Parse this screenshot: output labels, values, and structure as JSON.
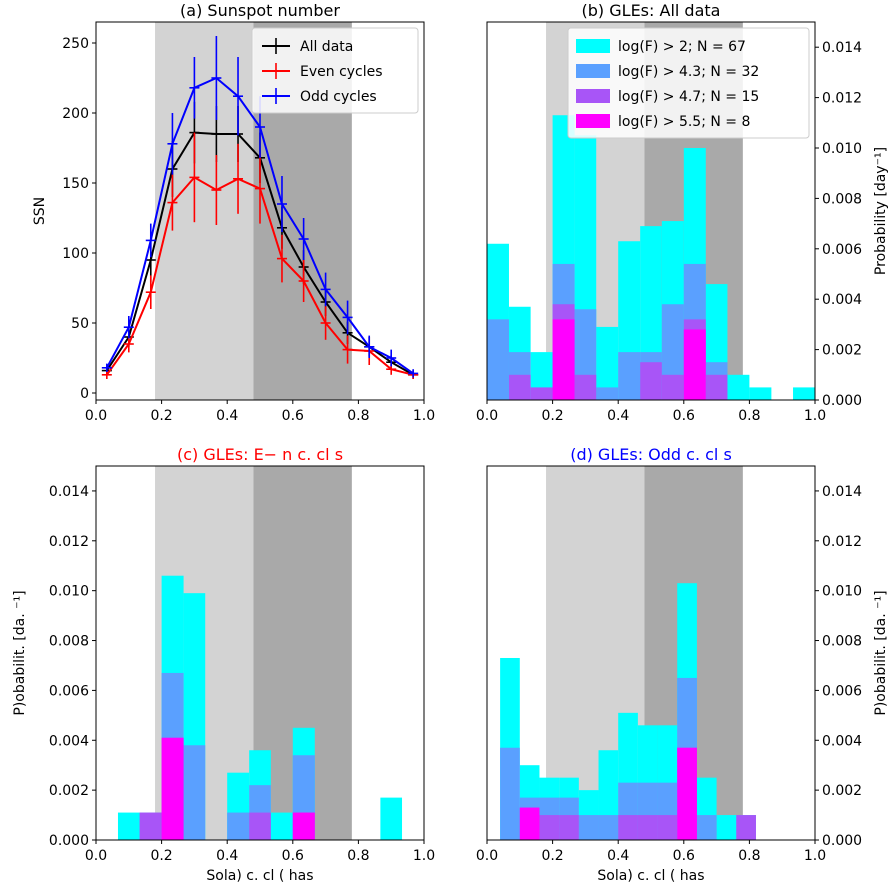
{
  "colors": {
    "all_data": "#000000",
    "even_cycles": "#ff0000",
    "odd_cycles": "#0000ff",
    "logF_2": "#00ffff",
    "logF_4_3": "#5aa0ff",
    "logF_4_7": "#a855f7",
    "logF_5_5": "#ff00ff",
    "rising_phase_band": "#d3d3d3",
    "declining_phase_band": "#a9a9a9"
  },
  "chart_data": [
    {
      "id": "a",
      "type": "line",
      "title": "(a) Sunspot number",
      "title_color": "#000000",
      "xlabel": "",
      "ylabel": "SSN",
      "xlim": [
        0.0,
        1.0
      ],
      "ylim": [
        -5,
        265
      ],
      "xticks": [
        "0.0",
        "0.2",
        "0.4",
        "0.6",
        "0.8",
        "1.0"
      ],
      "xtick_values": [
        0.0,
        0.2,
        0.4,
        0.6,
        0.8,
        1.0
      ],
      "yticks": [
        "0",
        "50",
        "100",
        "150",
        "200",
        "250"
      ],
      "ytick_values": [
        0,
        50,
        100,
        150,
        200,
        250
      ],
      "ytick_side": "left",
      "bands": [
        {
          "x0": 0.18,
          "x1": 0.48,
          "shade": "light"
        },
        {
          "x0": 0.48,
          "x1": 0.78,
          "shade": "dark"
        }
      ],
      "legend_position": "top-right",
      "x": [
        0.033,
        0.1,
        0.167,
        0.233,
        0.3,
        0.367,
        0.433,
        0.5,
        0.567,
        0.633,
        0.7,
        0.767,
        0.833,
        0.9,
        0.967
      ],
      "series": [
        {
          "name": "All data",
          "color_key": "all_data",
          "values": [
            16,
            40,
            95,
            160,
            186,
            185,
            185,
            168,
            118,
            90,
            65,
            43,
            33,
            22,
            13
          ],
          "errors": [
            3,
            7,
            16,
            20,
            22,
            20,
            20,
            18,
            15,
            12,
            10,
            8,
            7,
            5,
            3
          ]
        },
        {
          "name": "Even cycles",
          "color_key": "even_cycles",
          "values": [
            13,
            35,
            72,
            136,
            154,
            145,
            153,
            146,
            96,
            80,
            50,
            31,
            30,
            17,
            13
          ],
          "errors": [
            3,
            6,
            12,
            20,
            32,
            25,
            25,
            25,
            17,
            15,
            12,
            10,
            10,
            4,
            3
          ]
        },
        {
          "name": "Odd cycles",
          "color_key": "odd_cycles",
          "values": [
            18,
            47,
            109,
            178,
            218,
            225,
            212,
            190,
            135,
            110,
            74,
            54,
            33,
            25,
            14
          ],
          "errors": [
            3,
            8,
            12,
            22,
            22,
            30,
            28,
            22,
            20,
            15,
            12,
            12,
            8,
            6,
            3
          ]
        }
      ]
    },
    {
      "id": "b",
      "type": "bar",
      "title": "(b) GLEs: All data",
      "title_color": "#000000",
      "xlabel": "",
      "ylabel": "Probability [day⁻¹]",
      "xlim": [
        0.0,
        1.0
      ],
      "ylim": [
        0.0,
        0.015
      ],
      "xticks": [
        "0.0",
        "0.2",
        "0.4",
        "0.6",
        "0.8",
        "1.0"
      ],
      "xtick_values": [
        0.0,
        0.2,
        0.4,
        0.6,
        0.8,
        1.0
      ],
      "yticks": [
        "0.000",
        "0.002",
        "0.004",
        "0.006",
        "0.008",
        "0.010",
        "0.012",
        "0.014"
      ],
      "ytick_values": [
        0.0,
        0.002,
        0.004,
        0.006,
        0.008,
        0.01,
        0.012,
        0.014
      ],
      "ytick_side": "right",
      "bands": [
        {
          "x0": 0.18,
          "x1": 0.48,
          "shade": "light"
        },
        {
          "x0": 0.48,
          "x1": 0.78,
          "shade": "dark"
        }
      ],
      "legend_position": "top-right",
      "bin_edges": [
        0.0,
        0.067,
        0.133,
        0.2,
        0.267,
        0.333,
        0.4,
        0.467,
        0.533,
        0.6,
        0.667,
        0.733,
        0.8,
        0.867,
        0.933,
        1.0
      ],
      "series": [
        {
          "name": "log(F) > 2; N = 67",
          "color_key": "logF_2",
          "values": [
            0.0062,
            0.0037,
            0.0019,
            0.0113,
            0.0105,
            0.0029,
            0.0063,
            0.0069,
            0.0071,
            0.01,
            0.0046,
            0.001,
            0.0005,
            0,
            0.0005
          ]
        },
        {
          "name": "log(F) > 4.3; N = 32",
          "color_key": "logF_4_3",
          "values": [
            0.0032,
            0.0019,
            0,
            0.0054,
            0.0036,
            0.0005,
            0.0019,
            0.0019,
            0.0038,
            0.0054,
            0.0015,
            0,
            0,
            0,
            0
          ]
        },
        {
          "name": "log(F) > 4.7; N = 15",
          "color_key": "logF_4_7",
          "values": [
            0,
            0.001,
            0.0005,
            0.0038,
            0.001,
            0,
            0,
            0.0015,
            0.001,
            0.0032,
            0.001,
            0,
            0,
            0,
            0
          ]
        },
        {
          "name": "log(F) > 5.5; N = 8",
          "color_key": "logF_5_5",
          "values": [
            0,
            0,
            0,
            0.0032,
            0,
            0,
            0,
            0,
            0,
            0.0028,
            0,
            0,
            0,
            0,
            0
          ]
        }
      ]
    },
    {
      "id": "c",
      "type": "bar",
      "title": "(c) GLEs: E− n c. cl s",
      "title_color": "#ff0000",
      "xlabel": "Sola) c. cl ( has",
      "ylabel": "P)obabilit. [da. ⁻¹]",
      "xlim": [
        0.0,
        1.0
      ],
      "ylim": [
        0.0,
        0.015
      ],
      "xticks": [
        "0.0",
        "0.2",
        "0.4",
        "0.6",
        "0.8",
        "1.0"
      ],
      "xtick_values": [
        0.0,
        0.2,
        0.4,
        0.6,
        0.8,
        1.0
      ],
      "yticks": [
        "0.000",
        "0.002",
        "0.004",
        "0.006",
        "0.008",
        "0.010",
        "0.012",
        "0.014"
      ],
      "ytick_values": [
        0.0,
        0.002,
        0.004,
        0.006,
        0.008,
        0.01,
        0.012,
        0.014
      ],
      "ytick_side": "left",
      "bands": [
        {
          "x0": 0.18,
          "x1": 0.48,
          "shade": "light"
        },
        {
          "x0": 0.48,
          "x1": 0.78,
          "shade": "dark"
        }
      ],
      "bin_edges": [
        0.0,
        0.067,
        0.133,
        0.2,
        0.267,
        0.333,
        0.4,
        0.467,
        0.533,
        0.6,
        0.667,
        0.733,
        0.8,
        0.867,
        0.933,
        1.0
      ],
      "series": [
        {
          "name": "log(F) > 2",
          "color_key": "logF_2",
          "values": [
            0,
            0.0011,
            0.0011,
            0.0106,
            0.0099,
            0,
            0.0027,
            0.0036,
            0.0011,
            0.0045,
            0,
            0,
            0,
            0.0017,
            0
          ]
        },
        {
          "name": "log(F) > 4.3",
          "color_key": "logF_4_3",
          "values": [
            0,
            0,
            0.0011,
            0.0067,
            0.0038,
            0,
            0.0011,
            0.0022,
            0,
            0.0034,
            0,
            0,
            0,
            0,
            0
          ]
        },
        {
          "name": "log(F) > 4.7",
          "color_key": "logF_4_7",
          "values": [
            0,
            0,
            0.0011,
            0.0041,
            0,
            0,
            0,
            0.0011,
            0,
            0.0011,
            0,
            0,
            0,
            0,
            0
          ]
        },
        {
          "name": "log(F) > 5.5",
          "color_key": "logF_5_5",
          "values": [
            0,
            0,
            0,
            0.0041,
            0,
            0,
            0,
            0,
            0,
            0.0011,
            0,
            0,
            0,
            0,
            0
          ]
        }
      ]
    },
    {
      "id": "d",
      "type": "bar",
      "title": "(d) GLEs: Odd c. cl s",
      "title_color": "#0000ff",
      "xlabel": "Sola) c. cl ( has",
      "ylabel": "P)obabilit. [da. ⁻¹]",
      "xlim": [
        0.0,
        1.0
      ],
      "ylim": [
        0.0,
        0.015
      ],
      "xticks": [
        "0.0",
        "0.2",
        "0.4",
        "0.6",
        "0.8",
        "1.0"
      ],
      "xtick_values": [
        0.0,
        0.2,
        0.4,
        0.6,
        0.8,
        1.0
      ],
      "yticks": [
        "0.000",
        "0.002",
        "0.004",
        "0.006",
        "0.008",
        "0.010",
        "0.012",
        "0.014"
      ],
      "ytick_values": [
        0.0,
        0.002,
        0.004,
        0.006,
        0.008,
        0.01,
        0.012,
        0.014
      ],
      "ytick_side": "right",
      "bands": [
        {
          "x0": 0.18,
          "x1": 0.48,
          "shade": "light"
        },
        {
          "x0": 0.48,
          "x1": 0.78,
          "shade": "dark"
        }
      ],
      "bin_edges": [
        0.0,
        0.067,
        0.1,
        0.133,
        0.167,
        0.2,
        0.233,
        0.267,
        0.3,
        0.333,
        0.367,
        0.4,
        0.433,
        0.467,
        0.5,
        0.533,
        0.567,
        0.6,
        0.633,
        0.667,
        0.7,
        0.733,
        0.767,
        0.8,
        0.833,
        0.867,
        0.9,
        0.933,
        0.967,
        1.0
      ],
      "bar_bins": [
        [
          0.04,
          0.1
        ],
        [
          0.1,
          0.16
        ],
        [
          0.16,
          0.22
        ],
        [
          0.22,
          0.28
        ],
        [
          0.28,
          0.34
        ],
        [
          0.34,
          0.4
        ],
        [
          0.4,
          0.46
        ],
        [
          0.46,
          0.52
        ],
        [
          0.52,
          0.58
        ],
        [
          0.58,
          0.64
        ],
        [
          0.64,
          0.7
        ],
        [
          0.7,
          0.76
        ],
        [
          0.76,
          0.82
        ]
      ],
      "series": [
        {
          "name": "log(F) > 2",
          "color_key": "logF_2",
          "values": [
            0.0073,
            0.003,
            0.0025,
            0.0025,
            0.002,
            0.0036,
            0.0051,
            0.0046,
            0.0046,
            0.0103,
            0.0025,
            0.001,
            0.001
          ]
        },
        {
          "name": "log(F) > 4.3",
          "color_key": "logF_4_3",
          "values": [
            0.0037,
            0.0017,
            0.0017,
            0.0017,
            0.001,
            0.001,
            0.0023,
            0.0023,
            0.0023,
            0.0065,
            0.001,
            0,
            0
          ]
        },
        {
          "name": "log(F) > 4.7",
          "color_key": "logF_4_7",
          "values": [
            0,
            0.0013,
            0.001,
            0.001,
            0,
            0,
            0.001,
            0.001,
            0.001,
            0.0037,
            0,
            0,
            0.001
          ]
        },
        {
          "name": "log(F) > 5.5",
          "color_key": "logF_5_5",
          "values": [
            0,
            0.0013,
            0,
            0,
            0,
            0,
            0,
            0,
            0,
            0.0037,
            0,
            0,
            0
          ]
        }
      ]
    }
  ]
}
